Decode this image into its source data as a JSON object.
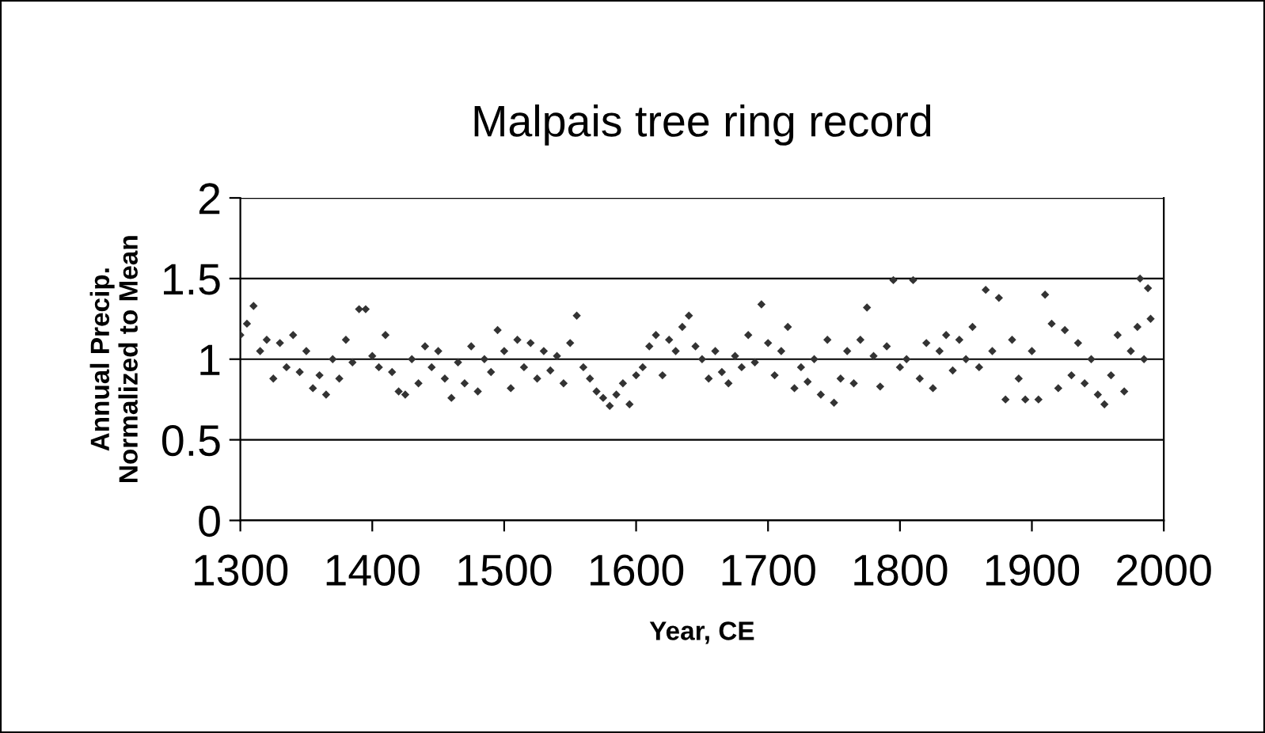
{
  "chart_data": {
    "type": "scatter",
    "title": "Malpais tree ring record",
    "xlabel": "Year, CE",
    "ylabel": "Annual Precip.\nNormalized to Mean",
    "x": [
      1300,
      1305,
      1310,
      1315,
      1320,
      1325,
      1330,
      1335,
      1340,
      1345,
      1350,
      1355,
      1360,
      1365,
      1370,
      1375,
      1380,
      1385,
      1390,
      1395,
      1400,
      1405,
      1410,
      1415,
      1420,
      1425,
      1430,
      1435,
      1440,
      1445,
      1450,
      1455,
      1460,
      1465,
      1470,
      1475,
      1480,
      1485,
      1490,
      1495,
      1500,
      1505,
      1510,
      1515,
      1520,
      1525,
      1530,
      1535,
      1540,
      1545,
      1550,
      1555,
      1560,
      1565,
      1570,
      1575,
      1580,
      1585,
      1590,
      1595,
      1600,
      1605,
      1610,
      1615,
      1620,
      1625,
      1630,
      1635,
      1640,
      1645,
      1650,
      1655,
      1660,
      1665,
      1670,
      1675,
      1680,
      1685,
      1690,
      1695,
      1700,
      1705,
      1710,
      1715,
      1720,
      1725,
      1730,
      1735,
      1740,
      1745,
      1750,
      1755,
      1760,
      1765,
      1770,
      1775,
      1780,
      1785,
      1790,
      1795,
      1800,
      1805,
      1810,
      1815,
      1820,
      1825,
      1830,
      1835,
      1840,
      1845,
      1850,
      1855,
      1860,
      1865,
      1870,
      1875,
      1880,
      1885,
      1890,
      1895,
      1900,
      1905,
      1910,
      1915,
      1920,
      1925,
      1930,
      1935,
      1940,
      1945,
      1950,
      1955,
      1960,
      1965,
      1970,
      1975,
      1980,
      1982,
      1985,
      1988,
      1990
    ],
    "series": [
      {
        "color": "#333333",
        "values": [
          1.15,
          1.22,
          1.33,
          1.05,
          1.12,
          0.88,
          1.1,
          0.95,
          1.15,
          0.92,
          1.05,
          0.82,
          0.9,
          0.78,
          1.0,
          0.88,
          1.12,
          0.98,
          1.31,
          1.31,
          1.02,
          0.95,
          1.15,
          0.92,
          0.8,
          0.78,
          1.0,
          0.85,
          1.08,
          0.95,
          1.05,
          0.88,
          0.76,
          0.98,
          0.85,
          1.08,
          0.8,
          1.0,
          0.92,
          1.18,
          1.05,
          0.82,
          1.12,
          0.95,
          1.1,
          0.88,
          1.05,
          0.93,
          1.02,
          0.85,
          1.1,
          1.27,
          0.95,
          0.88,
          0.8,
          0.76,
          0.71,
          0.78,
          0.85,
          0.72,
          0.9,
          0.95,
          1.08,
          1.15,
          0.9,
          1.12,
          1.05,
          1.2,
          1.27,
          1.08,
          1.0,
          0.88,
          1.05,
          0.92,
          0.85,
          1.02,
          0.95,
          1.15,
          0.98,
          1.34,
          1.1,
          0.9,
          1.05,
          1.2,
          0.82,
          0.95,
          0.86,
          1.0,
          0.78,
          1.12,
          0.73,
          0.88,
          1.05,
          0.85,
          1.12,
          1.32,
          1.02,
          0.83,
          1.08,
          1.49,
          0.95,
          1.0,
          1.49,
          0.88,
          1.1,
          0.82,
          1.05,
          1.15,
          0.93,
          1.12,
          1.0,
          1.2,
          0.95,
          1.43,
          1.05,
          1.38,
          0.75,
          1.12,
          0.88,
          0.75,
          1.05,
          0.75,
          1.4,
          1.22,
          0.82,
          1.18,
          0.9,
          1.1,
          0.85,
          1.0,
          0.78,
          0.72,
          0.9,
          1.15,
          0.8,
          1.05,
          1.2,
          1.5,
          1.0,
          1.44,
          1.25
        ]
      }
    ],
    "xlim": [
      1300,
      2000
    ],
    "xticks": [
      1300,
      1400,
      1500,
      1600,
      1700,
      1800,
      1900,
      2000
    ],
    "ylim": [
      0,
      2
    ],
    "yticks": [
      0,
      0.5,
      1,
      1.5,
      2
    ],
    "grid": "y",
    "marker": "diamond",
    "legend": false
  }
}
